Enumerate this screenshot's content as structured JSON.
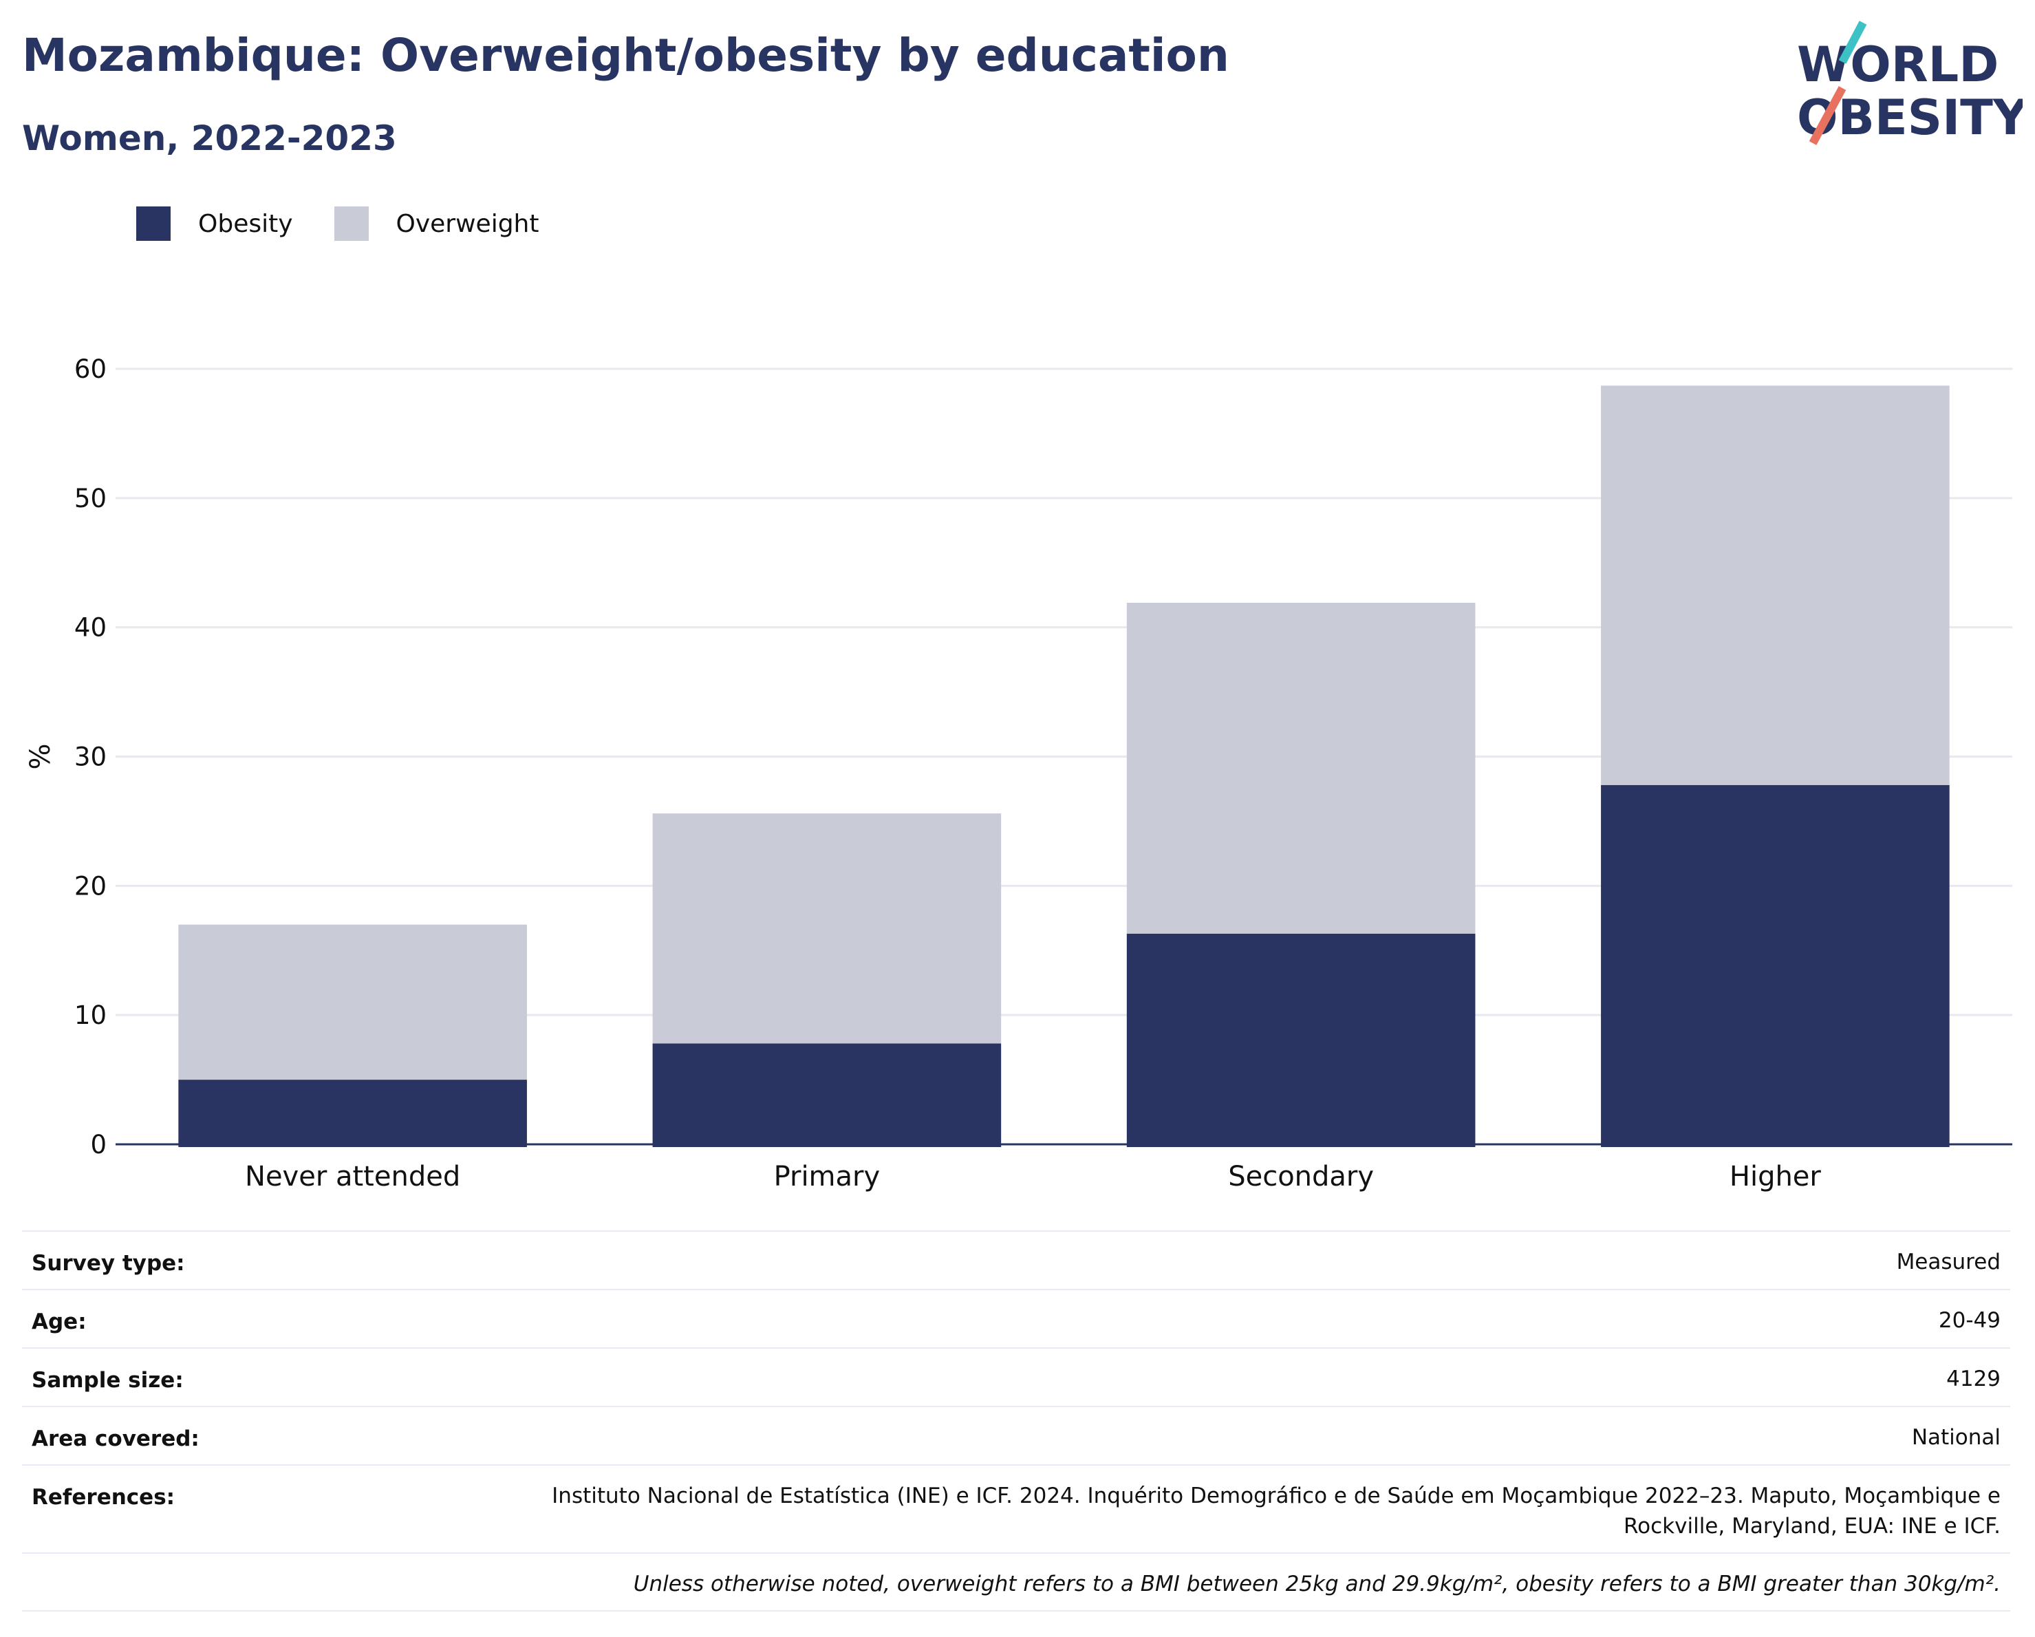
{
  "header": {
    "title": "Mozambique: Overweight/obesity by education",
    "subtitle": "Women, 2022-2023"
  },
  "logo": {
    "line1": "WORLD",
    "line2": "OBESITY"
  },
  "colors": {
    "obesity": "#293462",
    "overweight": "#c9cbd7",
    "axis": "#283462",
    "grid": "#e8e9ef",
    "logo_teal": "#3cc1c4",
    "logo_coral": "#e8725f"
  },
  "legend": {
    "obesity_label": "Obesity",
    "overweight_label": "Overweight"
  },
  "chart_data": {
    "type": "bar",
    "stacked": true,
    "categories": [
      "Never attended",
      "Primary",
      "Secondary",
      "Higher"
    ],
    "series": [
      {
        "name": "Obesity",
        "values": [
          5.0,
          7.8,
          16.3,
          27.8
        ]
      },
      {
        "name": "Overweight",
        "values": [
          12.0,
          17.8,
          25.6,
          30.9
        ]
      }
    ],
    "ylabel": "%",
    "ylim": [
      0,
      60
    ],
    "yticks": [
      0,
      10,
      20,
      30,
      40,
      50,
      60
    ],
    "grid": true,
    "legend_position": "top-left"
  },
  "meta": {
    "rows": [
      {
        "label": "Survey type:",
        "value": "Measured"
      },
      {
        "label": "Age:",
        "value": "20-49"
      },
      {
        "label": "Sample size:",
        "value": "4129"
      },
      {
        "label": "Area covered:",
        "value": "National"
      }
    ],
    "references_label": "References:",
    "references_value": "Instituto Nacional de Estatística (INE) e ICF. 2024. Inquérito Demográfico e de Saúde em Moçambique 2022–23. Maputo, Moçambique e Rockville, Maryland, EUA: INE e ICF.",
    "note": "Unless otherwise noted, overweight refers to a BMI between 25kg and 29.9kg/m², obesity refers to a BMI greater than 30kg/m²."
  }
}
